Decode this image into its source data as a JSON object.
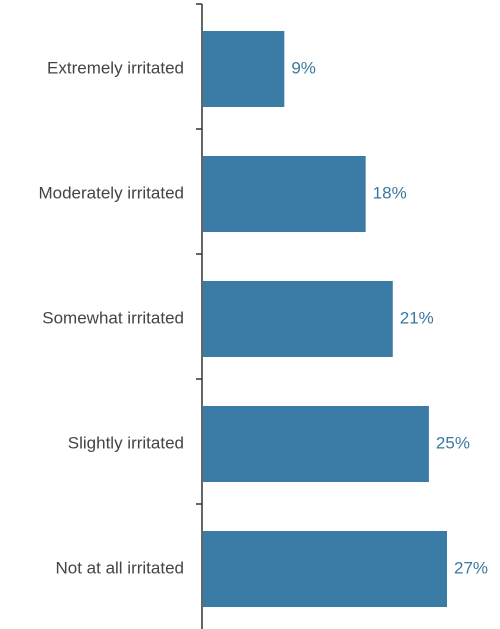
{
  "chart_data": {
    "type": "bar",
    "orientation": "horizontal",
    "categories": [
      "Extremely irritated",
      "Moderately irritated",
      "Somewhat irritated",
      "Slightly irritated",
      "Not at all irritated"
    ],
    "values": [
      9,
      18,
      21,
      25,
      27
    ],
    "value_labels": [
      "9%",
      "18%",
      "21%",
      "25%",
      "27%"
    ],
    "unit": "%",
    "title": "",
    "xlabel": "",
    "ylabel": "",
    "xlim": [
      0,
      33
    ],
    "grid": false,
    "legend": "none",
    "bar_color": "#3a7ca5",
    "value_label_color": "#3a78a0",
    "category_label_color": "#444444",
    "axis_color": "#333333"
  }
}
